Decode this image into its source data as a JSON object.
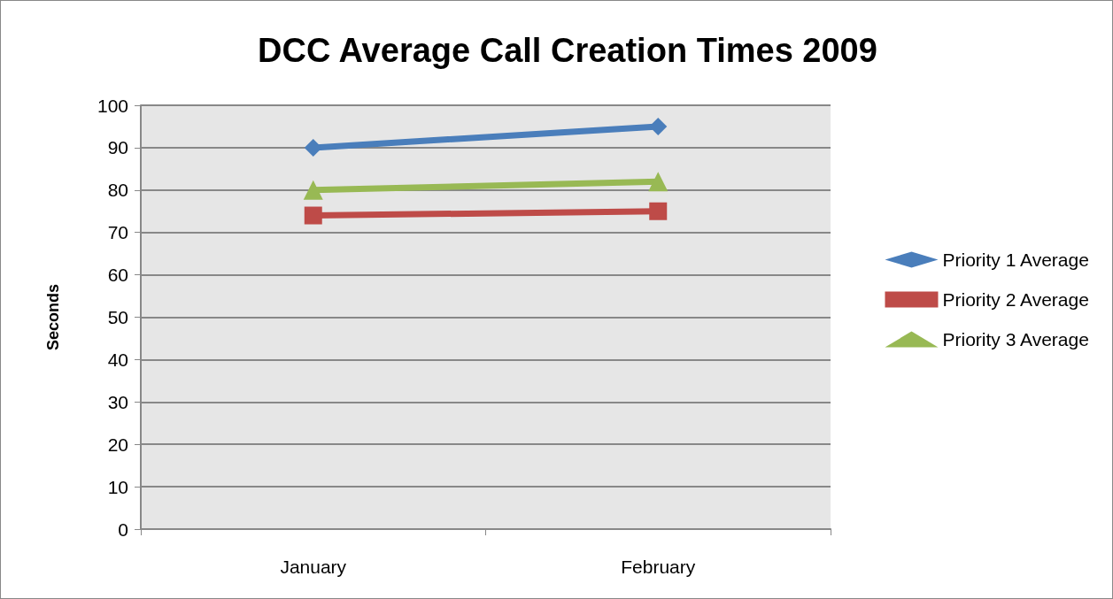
{
  "chart_data": {
    "type": "line",
    "title": "DCC Average Call Creation Times 2009",
    "ylabel": "Seconds",
    "categories": [
      "January",
      "February"
    ],
    "series": [
      {
        "name": "Priority 1 Average",
        "color": "#4a7ebb",
        "values": [
          90,
          95
        ],
        "marker": "diamond"
      },
      {
        "name": "Priority 2 Average",
        "color": "#be4b48",
        "values": [
          74,
          75
        ],
        "marker": "square"
      },
      {
        "name": "Priority 3 Average",
        "color": "#98b954",
        "values": [
          80,
          82
        ],
        "marker": "triangle"
      }
    ],
    "ylim": [
      0,
      100
    ],
    "yticks": [
      0,
      10,
      20,
      30,
      40,
      50,
      60,
      70,
      80,
      90,
      100
    ],
    "grid": "y",
    "legend": "right",
    "line_style": "solid"
  }
}
